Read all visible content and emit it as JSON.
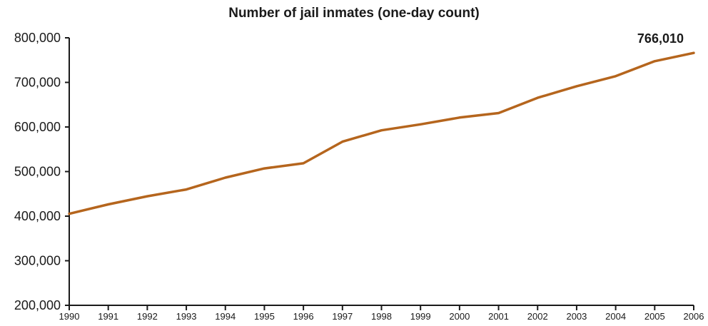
{
  "chart_data": {
    "type": "line",
    "title": "Number of jail inmates (one-day count)",
    "xlabel": "",
    "ylabel": "",
    "x": [
      "1990",
      "1991",
      "1992",
      "1993",
      "1994",
      "1995",
      "1996",
      "1997",
      "1998",
      "1999",
      "2000",
      "2001",
      "2002",
      "2003",
      "2004",
      "2005",
      "2006"
    ],
    "series": [
      {
        "values": [
          405320,
          426479,
          444584,
          459804,
          486474,
          507044,
          518492,
          567079,
          592462,
          605943,
          621149,
          631240,
          665475,
          691301,
          713990,
          747529,
          766010
        ]
      }
    ],
    "ylim": [
      200000,
      800000
    ],
    "yticks": [
      200000,
      300000,
      400000,
      500000,
      600000,
      700000,
      800000
    ],
    "ytick_labels": [
      "200,000",
      "300,000",
      "400,000",
      "500,000",
      "600,000",
      "700,000",
      "800,000"
    ],
    "annotations": [
      {
        "x": "2006",
        "text": "766,010"
      }
    ],
    "grid": false,
    "colors": {
      "line": "#b5651d",
      "axis": "#1a1a1a"
    }
  }
}
